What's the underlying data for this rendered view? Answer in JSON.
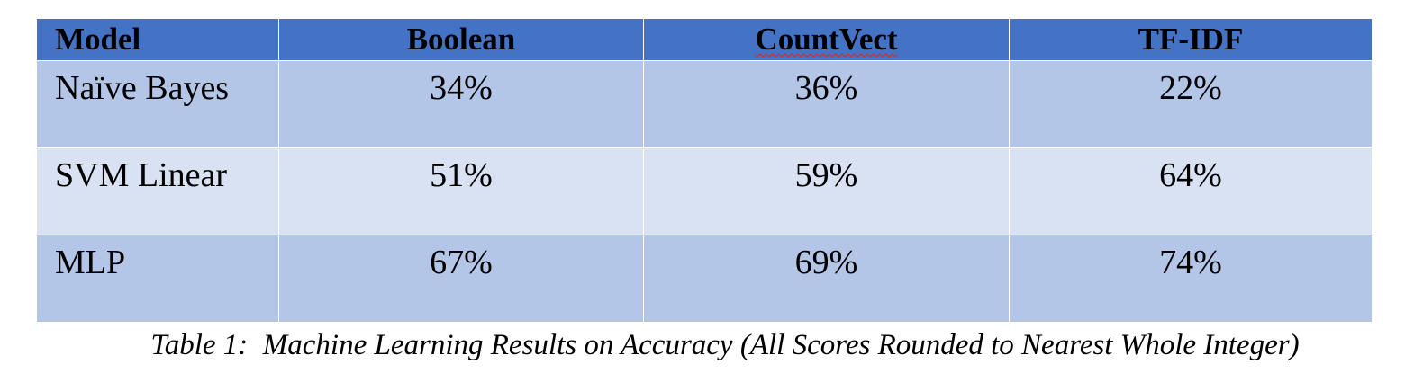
{
  "table": {
    "headers": [
      "Model",
      "Boolean",
      "CountVect",
      "TF-IDF"
    ],
    "rows": [
      {
        "model": "Naïve Bayes",
        "boolean": "34%",
        "countvect": "36%",
        "tfidf": "22%"
      },
      {
        "model": "SVM Linear",
        "boolean": "51%",
        "countvect": "59%",
        "tfidf": "64%"
      },
      {
        "model": "MLP",
        "boolean": "67%",
        "countvect": "69%",
        "tfidf": "74%"
      }
    ]
  },
  "caption": "Table 1:  Machine Learning Results on Accuracy (All Scores Rounded to Nearest Whole Integer)",
  "colors": {
    "header_bg": "#4472c4",
    "row_dark": "#b4c6e7",
    "row_light": "#d9e2f3",
    "spellcheck": "#d9281e"
  }
}
